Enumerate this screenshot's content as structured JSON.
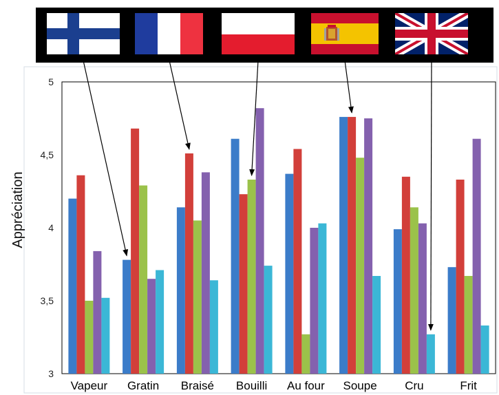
{
  "chart_data": {
    "type": "bar",
    "title": "",
    "xlabel": "",
    "ylabel": "Appréciation",
    "ylim": [
      3,
      5
    ],
    "yticks": [
      "3",
      "3,5",
      "4",
      "4,5",
      "5"
    ],
    "grid": false,
    "legend": "flag images above plot, arrows point to the marked bars",
    "categories": [
      "Vapeur",
      "Gratin",
      "Braisé",
      "Bouilli",
      "Au four",
      "Soupe",
      "Cru",
      "Frit"
    ],
    "series": [
      {
        "color": "#3b7cc9",
        "values": [
          4.2,
          3.78,
          4.14,
          4.61,
          4.37,
          4.76,
          3.99,
          3.73
        ]
      },
      {
        "color": "#d23f3a",
        "values": [
          4.36,
          4.68,
          4.51,
          4.23,
          4.54,
          4.76,
          4.35,
          4.33
        ]
      },
      {
        "color": "#9bc24a",
        "values": [
          3.5,
          4.29,
          4.05,
          4.33,
          3.27,
          4.48,
          4.14,
          3.67
        ]
      },
      {
        "color": "#8461ae",
        "values": [
          3.84,
          3.65,
          4.38,
          4.82,
          4.0,
          4.75,
          4.03,
          4.61
        ]
      },
      {
        "color": "#3bb7d6",
        "values": [
          3.52,
          3.71,
          3.64,
          3.74,
          4.03,
          3.67,
          3.27,
          3.33
        ]
      }
    ],
    "flags": [
      {
        "country": "Finland",
        "icon": "finland-flag-icon",
        "points_to_category": "Gratin",
        "points_to_series": 0
      },
      {
        "country": "France",
        "icon": "france-flag-icon",
        "points_to_category": "Braisé",
        "points_to_series": 1
      },
      {
        "country": "Poland",
        "icon": "poland-flag-icon",
        "points_to_category": "Bouilli",
        "points_to_series": 2
      },
      {
        "country": "Spain",
        "icon": "spain-flag-icon",
        "points_to_category": "Soupe",
        "points_to_series": 1
      },
      {
        "country": "United Kingdom",
        "icon": "uk-flag-icon",
        "points_to_category": "Cru",
        "points_to_series": 4
      }
    ]
  }
}
